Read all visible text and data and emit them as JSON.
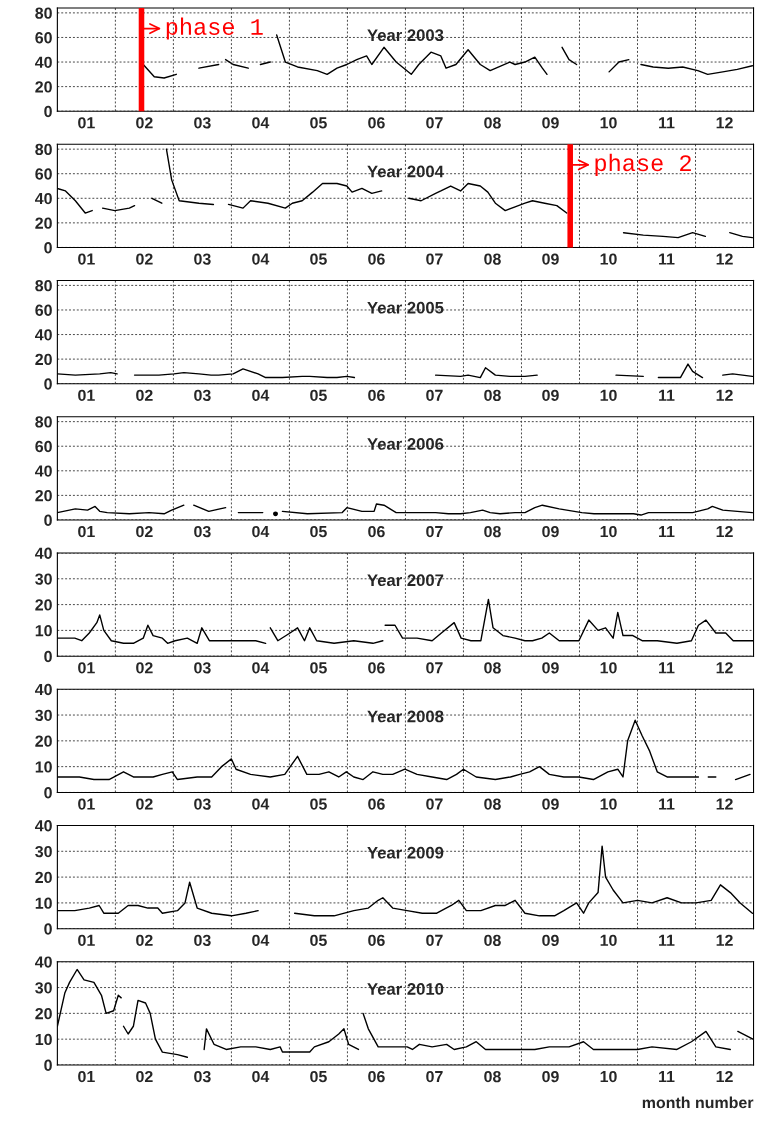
{
  "chart_data": [
    {
      "type": "line",
      "title": "Year 2003",
      "xlim": [
        0,
        12
      ],
      "ylim": [
        0,
        84
      ],
      "yticks": [
        0,
        20,
        40,
        60,
        80
      ],
      "grid": true,
      "xticks": [
        {
          "value": 0.5,
          "label": "01"
        },
        {
          "value": 1,
          "label": null
        },
        {
          "value": 1.5,
          "label": "02"
        },
        {
          "value": 2,
          "label": null
        },
        {
          "value": 2.5,
          "label": "03"
        },
        {
          "value": 3,
          "label": null
        },
        {
          "value": 3.5,
          "label": "04"
        },
        {
          "value": 4,
          "label": null
        },
        {
          "value": 4.5,
          "label": "05"
        },
        {
          "value": 5,
          "label": null
        },
        {
          "value": 5.5,
          "label": "06"
        },
        {
          "value": 6,
          "label": null
        },
        {
          "value": 6.5,
          "label": "07"
        },
        {
          "value": 7,
          "label": null
        },
        {
          "value": 7.5,
          "label": "08"
        },
        {
          "value": 8,
          "label": null
        },
        {
          "value": 8.5,
          "label": "09"
        },
        {
          "value": 9,
          "label": null
        },
        {
          "value": 9.5,
          "label": "10"
        },
        {
          "value": 10,
          "label": null
        },
        {
          "value": 10.5,
          "label": "11"
        },
        {
          "value": 11,
          "label": null
        },
        {
          "value": 11.5,
          "label": "12"
        }
      ],
      "ref_lines": [
        {
          "axis": "x",
          "value": 1.45,
          "label": "phase 1",
          "color": "#ff0000"
        }
      ],
      "series": [
        {
          "color": "#000000",
          "x": [
            1.48,
            1.67,
            1.84,
            2.05,
            2.2,
            2.44,
            2.78,
            2.84,
            2.9,
            3.03,
            3.29,
            3.4,
            3.5,
            3.67,
            3.72,
            3.78,
            3.93,
            4.14,
            4.48,
            4.65,
            4.82,
            4.99,
            5.16,
            5.33,
            5.42,
            5.63,
            5.84,
            6.1,
            6.23,
            6.44,
            6.61,
            6.7,
            6.87,
            7.08,
            7.29,
            7.46,
            7.8,
            7.89,
            8.06,
            8.23,
            8.36,
            8.44,
            8.6,
            8.7,
            8.82,
            8.95,
            9.3,
            9.51,
            9.68,
            9.85,
            9.95,
            10.06,
            10.27,
            10.53,
            10.78,
            11.04,
            11.21,
            11.47,
            11.72,
            11.98
          ],
          "values": [
            38,
            28,
            27,
            30,
            null,
            35,
            38,
            null,
            42,
            38,
            35,
            null,
            38,
            40,
            null,
            62,
            40,
            36,
            33,
            30,
            35,
            38,
            42,
            45,
            38,
            52,
            40,
            30,
            38,
            48,
            45,
            35,
            38,
            50,
            38,
            33,
            40,
            38,
            40,
            44,
            35,
            30,
            null,
            52,
            42,
            38,
            null,
            32,
            40,
            42,
            null,
            38,
            36,
            35,
            36,
            33,
            30,
            32,
            34,
            37
          ]
        }
      ]
    },
    {
      "type": "line",
      "title": "Year 2004",
      "xlim": [
        0,
        12
      ],
      "ylim": [
        0,
        84
      ],
      "yticks": [
        0,
        20,
        40,
        60,
        80
      ],
      "grid": true,
      "xticks": [
        {
          "value": 0.5,
          "label": "01"
        },
        {
          "value": 1,
          "label": null
        },
        {
          "value": 1.5,
          "label": "02"
        },
        {
          "value": 2,
          "label": null
        },
        {
          "value": 2.5,
          "label": "03"
        },
        {
          "value": 3,
          "label": null
        },
        {
          "value": 3.5,
          "label": "04"
        },
        {
          "value": 4,
          "label": null
        },
        {
          "value": 4.5,
          "label": "05"
        },
        {
          "value": 5,
          "label": null
        },
        {
          "value": 5.5,
          "label": "06"
        },
        {
          "value": 6,
          "label": null
        },
        {
          "value": 6.5,
          "label": "07"
        },
        {
          "value": 7,
          "label": null
        },
        {
          "value": 7.5,
          "label": "08"
        },
        {
          "value": 8,
          "label": null
        },
        {
          "value": 8.5,
          "label": "09"
        },
        {
          "value": 9,
          "label": null
        },
        {
          "value": 9.5,
          "label": "10"
        },
        {
          "value": 10,
          "label": null
        },
        {
          "value": 10.5,
          "label": "11"
        },
        {
          "value": 11,
          "label": null
        },
        {
          "value": 11.5,
          "label": "12"
        }
      ],
      "ref_lines": [
        {
          "axis": "x",
          "value": 8.84,
          "label": "phase 2",
          "color": "#ff0000"
        }
      ],
      "series": [
        {
          "color": "#000000",
          "x": [
            0.0,
            0.14,
            0.31,
            0.48,
            0.6,
            0.69,
            0.78,
            0.99,
            1.24,
            1.33,
            1.5,
            1.63,
            1.8,
            1.84,
            1.88,
            1.97,
            2.1,
            2.44,
            2.69,
            2.78,
            2.95,
            3.2,
            3.33,
            3.63,
            3.93,
            4.05,
            4.22,
            4.4,
            4.57,
            4.82,
            4.99,
            5.08,
            5.25,
            5.42,
            5.59,
            5.8,
            6.06,
            6.27,
            6.52,
            6.61,
            6.78,
            6.95,
            7.08,
            7.29,
            7.42,
            7.55,
            7.72,
            7.89,
            8.06,
            8.19,
            8.4,
            8.61,
            8.78,
            9.3,
            9.76,
            10.1,
            10.44,
            10.7,
            10.95,
            11.17,
            11.3,
            11.59,
            11.81,
            11.98
          ],
          "values": [
            48,
            46,
            38,
            28,
            30,
            null,
            32,
            30,
            32,
            34,
            null,
            40,
            36,
            null,
            80,
            55,
            38,
            36,
            35,
            null,
            35,
            32,
            38,
            36,
            32,
            36,
            38,
            45,
            52,
            52,
            50,
            45,
            48,
            44,
            46,
            null,
            40,
            38,
            44,
            46,
            50,
            46,
            52,
            50,
            45,
            36,
            30,
            33,
            36,
            38,
            36,
            34,
            28,
            null,
            12,
            10,
            9,
            8,
            12,
            9,
            null,
            12,
            9,
            8
          ]
        }
      ]
    },
    {
      "type": "line",
      "title": "Year 2005",
      "xlim": [
        0,
        12
      ],
      "ylim": [
        0,
        84
      ],
      "yticks": [
        0,
        20,
        40,
        60,
        80
      ],
      "grid": true,
      "xticks": [
        {
          "value": 0.5,
          "label": "01"
        },
        {
          "value": 1,
          "label": null
        },
        {
          "value": 1.5,
          "label": "02"
        },
        {
          "value": 2,
          "label": null
        },
        {
          "value": 2.5,
          "label": "03"
        },
        {
          "value": 3,
          "label": null
        },
        {
          "value": 3.5,
          "label": "04"
        },
        {
          "value": 4,
          "label": null
        },
        {
          "value": 4.5,
          "label": "05"
        },
        {
          "value": 5,
          "label": null
        },
        {
          "value": 5.5,
          "label": "06"
        },
        {
          "value": 6,
          "label": null
        },
        {
          "value": 6.5,
          "label": "07"
        },
        {
          "value": 7,
          "label": null
        },
        {
          "value": 7.5,
          "label": "08"
        },
        {
          "value": 8,
          "label": null
        },
        {
          "value": 8.5,
          "label": "09"
        },
        {
          "value": 9,
          "label": null
        },
        {
          "value": 9.5,
          "label": "10"
        },
        {
          "value": 10,
          "label": null
        },
        {
          "value": 10.5,
          "label": "11"
        },
        {
          "value": 11,
          "label": null
        },
        {
          "value": 11.5,
          "label": "12"
        }
      ],
      "series": [
        {
          "color": "#000000",
          "x": [
            0.0,
            0.31,
            0.73,
            0.92,
            1.03,
            1.1,
            1.33,
            1.75,
            2.01,
            2.18,
            2.44,
            2.65,
            2.78,
            3.03,
            3.2,
            3.46,
            3.59,
            3.88,
            4.22,
            4.35,
            4.65,
            4.82,
            4.99,
            5.12,
            6.5,
            6.52,
            6.95,
            7.08,
            7.29,
            7.38,
            7.55,
            7.8,
            8.06,
            8.27,
            9.0,
            9.63,
            10.1,
            10.25,
            10.36,
            10.74,
            10.87,
            10.95,
            11.12,
            11.3,
            11.47,
            11.64,
            11.98
          ],
          "values": [
            8,
            7,
            8,
            9,
            8,
            null,
            7,
            7,
            8,
            9,
            8,
            7,
            7,
            8,
            12,
            8,
            5,
            5,
            6,
            6,
            5,
            5,
            6,
            5,
            null,
            7,
            6,
            7,
            5,
            13,
            7,
            6,
            6,
            7,
            null,
            7,
            6,
            null,
            5,
            5,
            16,
            10,
            5,
            null,
            7,
            8,
            6
          ]
        }
      ]
    },
    {
      "type": "line",
      "title": "Year 2006",
      "xlim": [
        0,
        12
      ],
      "ylim": [
        0,
        84
      ],
      "yticks": [
        0,
        20,
        40,
        60,
        80
      ],
      "grid": true,
      "xticks": [
        {
          "value": 0.5,
          "label": "01"
        },
        {
          "value": 1,
          "label": null
        },
        {
          "value": 1.5,
          "label": "02"
        },
        {
          "value": 2,
          "label": null
        },
        {
          "value": 2.5,
          "label": "03"
        },
        {
          "value": 3,
          "label": null
        },
        {
          "value": 3.5,
          "label": "04"
        },
        {
          "value": 4,
          "label": null
        },
        {
          "value": 4.5,
          "label": "05"
        },
        {
          "value": 5,
          "label": null
        },
        {
          "value": 5.5,
          "label": "06"
        },
        {
          "value": 6,
          "label": null
        },
        {
          "value": 6.5,
          "label": "07"
        },
        {
          "value": 7,
          "label": null
        },
        {
          "value": 7.5,
          "label": "08"
        },
        {
          "value": 8,
          "label": null
        },
        {
          "value": 8.5,
          "label": "09"
        },
        {
          "value": 9,
          "label": null
        },
        {
          "value": 9.5,
          "label": "10"
        },
        {
          "value": 10,
          "label": null
        },
        {
          "value": 10.5,
          "label": "11"
        },
        {
          "value": 11,
          "label": null
        },
        {
          "value": 11.5,
          "label": "12"
        }
      ],
      "series": [
        {
          "color": "#000000",
          "x": [
            0.0,
            0.31,
            0.52,
            0.65,
            0.73,
            0.86,
            1.24,
            1.58,
            1.84,
            1.97,
            2.18,
            2.3,
            2.35,
            2.61,
            2.9,
            3.05,
            3.12,
            3.54,
            3.67,
            3.76,
            3.8,
            3.88,
            4.31,
            4.91,
            4.99,
            5.25,
            5.46,
            5.5,
            5.63,
            5.84,
            6.27,
            6.52,
            6.74,
            6.95,
            7.12,
            7.33,
            7.46,
            7.63,
            7.89,
            8.06,
            8.23,
            8.36,
            8.65,
            8.91,
            9.04,
            9.25,
            9.59,
            9.93,
            10.06,
            10.19,
            10.61,
            10.95,
            11.21,
            11.29,
            11.47,
            11.72,
            11.98
          ],
          "values": [
            6,
            9,
            8,
            11,
            7,
            6,
            5,
            6,
            5,
            8,
            12,
            null,
            12,
            7,
            10,
            null,
            6,
            6,
            null,
            5,
            null,
            7,
            5,
            6,
            10,
            7,
            7,
            13,
            12,
            6,
            6,
            6,
            5,
            5,
            6,
            8,
            6,
            5,
            6,
            6,
            10,
            12,
            9,
            7,
            6,
            5,
            5,
            5,
            4,
            6,
            6,
            6,
            9,
            11,
            8,
            7,
            6
          ]
        }
      ]
    },
    {
      "type": "line",
      "title": "Year 2007",
      "xlim": [
        0,
        12
      ],
      "ylim": [
        0,
        40
      ],
      "yticks": [
        0,
        10,
        20,
        30,
        40
      ],
      "grid": true,
      "xticks": [
        {
          "value": 0.5,
          "label": "01"
        },
        {
          "value": 1,
          "label": null
        },
        {
          "value": 1.5,
          "label": "02"
        },
        {
          "value": 2,
          "label": null
        },
        {
          "value": 2.5,
          "label": "03"
        },
        {
          "value": 3,
          "label": null
        },
        {
          "value": 3.5,
          "label": "04"
        },
        {
          "value": 4,
          "label": null
        },
        {
          "value": 4.5,
          "label": "05"
        },
        {
          "value": 5,
          "label": null
        },
        {
          "value": 5.5,
          "label": "06"
        },
        {
          "value": 6,
          "label": null
        },
        {
          "value": 6.5,
          "label": "07"
        },
        {
          "value": 7,
          "label": null
        },
        {
          "value": 7.5,
          "label": "08"
        },
        {
          "value": 8,
          "label": null
        },
        {
          "value": 8.5,
          "label": "09"
        },
        {
          "value": 9,
          "label": null
        },
        {
          "value": 9.5,
          "label": "10"
        },
        {
          "value": 10,
          "label": null
        },
        {
          "value": 10.5,
          "label": "11"
        },
        {
          "value": 11,
          "label": null
        },
        {
          "value": 11.5,
          "label": "12"
        }
      ],
      "series": [
        {
          "color": "#000000",
          "x": [
            0.0,
            0.3,
            0.42,
            0.55,
            0.68,
            0.73,
            0.8,
            0.93,
            1.14,
            1.31,
            1.48,
            1.56,
            1.65,
            1.81,
            1.9,
            2.03,
            2.24,
            2.41,
            2.49,
            2.62,
            2.83,
            3.08,
            3.42,
            3.59,
            3.63,
            3.67,
            3.8,
            4.01,
            4.14,
            4.26,
            4.35,
            4.47,
            4.77,
            5.11,
            5.44,
            5.61,
            5.63,
            5.65,
            5.82,
            5.95,
            6.2,
            6.46,
            6.62,
            6.84,
            6.96,
            7.13,
            7.3,
            7.43,
            7.51,
            7.68,
            7.89,
            8.06,
            8.19,
            8.35,
            8.48,
            8.65,
            8.99,
            9.16,
            9.32,
            9.45,
            9.58,
            9.66,
            9.75,
            9.92,
            10.08,
            10.34,
            10.68,
            10.93,
            11.05,
            11.18,
            11.35,
            11.52,
            11.65,
            11.86,
            11.99
          ],
          "values": [
            7,
            7,
            6,
            9,
            13,
            16,
            10,
            6,
            5,
            5,
            7,
            12,
            8,
            7,
            5,
            6,
            7,
            5,
            11,
            6,
            6,
            6,
            6,
            5,
            null,
            11,
            6,
            9,
            11,
            6,
            11,
            6,
            5,
            6,
            5,
            6,
            null,
            12,
            12,
            7,
            7,
            6,
            9,
            13,
            7,
            6,
            6,
            22,
            11,
            8,
            7,
            6,
            6,
            7,
            9,
            6,
            6,
            14,
            10,
            11,
            7,
            17,
            8,
            8,
            6,
            6,
            5,
            6,
            12,
            14,
            9,
            9,
            6,
            6,
            6
          ]
        }
      ]
    },
    {
      "type": "line",
      "title": "Year 2008",
      "xlim": [
        0,
        12
      ],
      "ylim": [
        0,
        40
      ],
      "yticks": [
        0,
        10,
        20,
        30,
        40
      ],
      "grid": true,
      "xticks": [
        {
          "value": 0.5,
          "label": "01"
        },
        {
          "value": 1,
          "label": null
        },
        {
          "value": 1.5,
          "label": "02"
        },
        {
          "value": 2,
          "label": null
        },
        {
          "value": 2.5,
          "label": "03"
        },
        {
          "value": 3,
          "label": null
        },
        {
          "value": 3.5,
          "label": "04"
        },
        {
          "value": 4,
          "label": null
        },
        {
          "value": 4.5,
          "label": "05"
        },
        {
          "value": 5,
          "label": null
        },
        {
          "value": 5.5,
          "label": "06"
        },
        {
          "value": 6,
          "label": null
        },
        {
          "value": 6.5,
          "label": "07"
        },
        {
          "value": 7,
          "label": null
        },
        {
          "value": 7.5,
          "label": "08"
        },
        {
          "value": 8,
          "label": null
        },
        {
          "value": 8.5,
          "label": "09"
        },
        {
          "value": 9,
          "label": null
        },
        {
          "value": 9.5,
          "label": "10"
        },
        {
          "value": 10,
          "label": null
        },
        {
          "value": 10.5,
          "label": "11"
        },
        {
          "value": 11,
          "label": null
        },
        {
          "value": 11.5,
          "label": "12"
        }
      ],
      "series": [
        {
          "color": "#000000",
          "x": [
            0.0,
            0.38,
            0.63,
            0.89,
            1.14,
            1.31,
            1.65,
            1.81,
            1.98,
            2.07,
            2.41,
            2.66,
            2.83,
            3.0,
            3.08,
            3.33,
            3.67,
            3.92,
            4.14,
            4.3,
            4.51,
            4.68,
            4.85,
            4.98,
            5.11,
            5.27,
            5.44,
            5.61,
            5.78,
            5.99,
            6.2,
            6.46,
            6.71,
            6.88,
            7.0,
            7.22,
            7.55,
            7.81,
            7.97,
            8.14,
            8.31,
            8.48,
            8.73,
            8.99,
            9.24,
            9.49,
            9.66,
            9.75,
            9.83,
            9.96,
            10.08,
            10.21,
            10.34,
            10.51,
            10.84,
            11.05,
            11.1,
            11.22,
            11.35,
            11.5,
            11.69,
            11.94
          ],
          "values": [
            6,
            6,
            5,
            5,
            8,
            6,
            6,
            7,
            8,
            5,
            6,
            6,
            10,
            13,
            9,
            7,
            6,
            7,
            14,
            7,
            7,
            8,
            6,
            8,
            6,
            5,
            8,
            7,
            7,
            9,
            7,
            6,
            5,
            7,
            9,
            6,
            5,
            6,
            7,
            8,
            10,
            7,
            6,
            6,
            5,
            8,
            9,
            6,
            20,
            28,
            22,
            16,
            8,
            6,
            6,
            6,
            null,
            6,
            6,
            null,
            5,
            7
          ]
        }
      ]
    },
    {
      "type": "line",
      "title": "Year 2009",
      "xlim": [
        0,
        12
      ],
      "ylim": [
        0,
        40
      ],
      "yticks": [
        0,
        10,
        20,
        30,
        40
      ],
      "grid": true,
      "xticks": [
        {
          "value": 0.5,
          "label": "01"
        },
        {
          "value": 1,
          "label": null
        },
        {
          "value": 1.5,
          "label": "02"
        },
        {
          "value": 2,
          "label": null
        },
        {
          "value": 2.5,
          "label": "03"
        },
        {
          "value": 3,
          "label": null
        },
        {
          "value": 3.5,
          "label": "04"
        },
        {
          "value": 4,
          "label": null
        },
        {
          "value": 4.5,
          "label": "05"
        },
        {
          "value": 5,
          "label": null
        },
        {
          "value": 5.5,
          "label": "06"
        },
        {
          "value": 6,
          "label": null
        },
        {
          "value": 6.5,
          "label": "07"
        },
        {
          "value": 7,
          "label": null
        },
        {
          "value": 7.5,
          "label": "08"
        },
        {
          "value": 8,
          "label": null
        },
        {
          "value": 8.5,
          "label": "09"
        },
        {
          "value": 9,
          "label": null
        },
        {
          "value": 9.5,
          "label": "10"
        },
        {
          "value": 10,
          "label": null
        },
        {
          "value": 10.5,
          "label": "11"
        },
        {
          "value": 11,
          "label": null
        },
        {
          "value": 11.5,
          "label": "12"
        }
      ],
      "series": [
        {
          "color": "#000000",
          "x": [
            0.0,
            0.3,
            0.55,
            0.72,
            0.8,
            1.05,
            1.22,
            1.39,
            1.56,
            1.73,
            1.81,
            2.07,
            2.2,
            2.28,
            2.41,
            2.66,
            3.0,
            3.25,
            3.46,
            4.0,
            4.09,
            4.43,
            4.77,
            5.11,
            5.36,
            5.53,
            5.61,
            5.78,
            6.03,
            6.29,
            6.54,
            6.79,
            6.92,
            7.05,
            7.3,
            7.55,
            7.72,
            7.89,
            8.06,
            8.31,
            8.57,
            8.73,
            8.95,
            9.07,
            9.16,
            9.32,
            9.39,
            9.45,
            9.58,
            9.75,
            10.0,
            10.25,
            10.51,
            10.76,
            11.01,
            11.27,
            11.43,
            11.6,
            11.77,
            11.98
          ],
          "values": [
            7,
            7,
            8,
            9,
            6,
            6,
            9,
            9,
            8,
            8,
            6,
            7,
            10,
            18,
            8,
            6,
            5,
            6,
            7,
            null,
            6,
            5,
            5,
            7,
            8,
            11,
            12,
            8,
            7,
            6,
            6,
            9,
            11,
            7,
            7,
            9,
            9,
            11,
            6,
            5,
            5,
            7,
            10,
            6,
            10,
            14,
            32,
            20,
            15,
            10,
            11,
            10,
            12,
            10,
            10,
            11,
            17,
            14,
            10,
            6
          ]
        }
      ]
    },
    {
      "type": "line",
      "title": "Year 2010",
      "xlabel": "month number",
      "xlim": [
        0,
        12
      ],
      "ylim": [
        0,
        40
      ],
      "yticks": [
        0,
        10,
        20,
        30,
        40
      ],
      "grid": true,
      "xticks": [
        {
          "value": 0.5,
          "label": "01"
        },
        {
          "value": 1,
          "label": null
        },
        {
          "value": 1.5,
          "label": "02"
        },
        {
          "value": 2,
          "label": null
        },
        {
          "value": 2.5,
          "label": "03"
        },
        {
          "value": 3,
          "label": null
        },
        {
          "value": 3.5,
          "label": "04"
        },
        {
          "value": 4,
          "label": null
        },
        {
          "value": 4.5,
          "label": "05"
        },
        {
          "value": 5,
          "label": null
        },
        {
          "value": 5.5,
          "label": "06"
        },
        {
          "value": 6,
          "label": null
        },
        {
          "value": 6.5,
          "label": "07"
        },
        {
          "value": 7,
          "label": null
        },
        {
          "value": 7.5,
          "label": "08"
        },
        {
          "value": 8,
          "label": null
        },
        {
          "value": 8.5,
          "label": "09"
        },
        {
          "value": 9,
          "label": null
        },
        {
          "value": 9.5,
          "label": "10"
        },
        {
          "value": 10,
          "label": null
        },
        {
          "value": 10.5,
          "label": "11"
        },
        {
          "value": 11,
          "label": null
        },
        {
          "value": 11.5,
          "label": "12"
        }
      ],
      "series": [
        {
          "color": "#000000",
          "x": [
            0.0,
            0.13,
            0.21,
            0.34,
            0.46,
            0.63,
            0.76,
            0.84,
            0.97,
            1.05,
            1.1,
            1.12,
            1.14,
            1.22,
            1.31,
            1.39,
            1.52,
            1.6,
            1.69,
            1.81,
            2.07,
            2.24,
            2.4,
            2.53,
            2.57,
            2.7,
            2.91,
            3.16,
            3.42,
            3.67,
            3.84,
            3.88,
            4.35,
            4.43,
            4.68,
            4.85,
            4.94,
            5.02,
            5.19,
            5.23,
            5.27,
            5.36,
            5.53,
            5.86,
            6.03,
            6.12,
            6.24,
            6.46,
            6.71,
            6.84,
            7.05,
            7.22,
            7.38,
            7.64,
            7.97,
            8.14,
            8.23,
            8.48,
            8.82,
            9.07,
            9.24,
            9.58,
            10.0,
            10.25,
            10.68,
            10.93,
            11.18,
            11.35,
            11.6,
            11.69,
            11.73,
            11.99
          ],
          "values": [
            15,
            28,
            32,
            37,
            33,
            32,
            27,
            20,
            21,
            27,
            26,
            null,
            15,
            12,
            15,
            25,
            24,
            20,
            10,
            5,
            4,
            3,
            null,
            6,
            14,
            8,
            6,
            7,
            7,
            6,
            7,
            5,
            5,
            7,
            9,
            12,
            14,
            8,
            6,
            null,
            20,
            14,
            7,
            7,
            7,
            6,
            8,
            7,
            8,
            6,
            7,
            9,
            6,
            6,
            6,
            6,
            6,
            7,
            7,
            9,
            6,
            6,
            6,
            7,
            6,
            9,
            13,
            7,
            6,
            null,
            13,
            10
          ]
        }
      ]
    }
  ]
}
